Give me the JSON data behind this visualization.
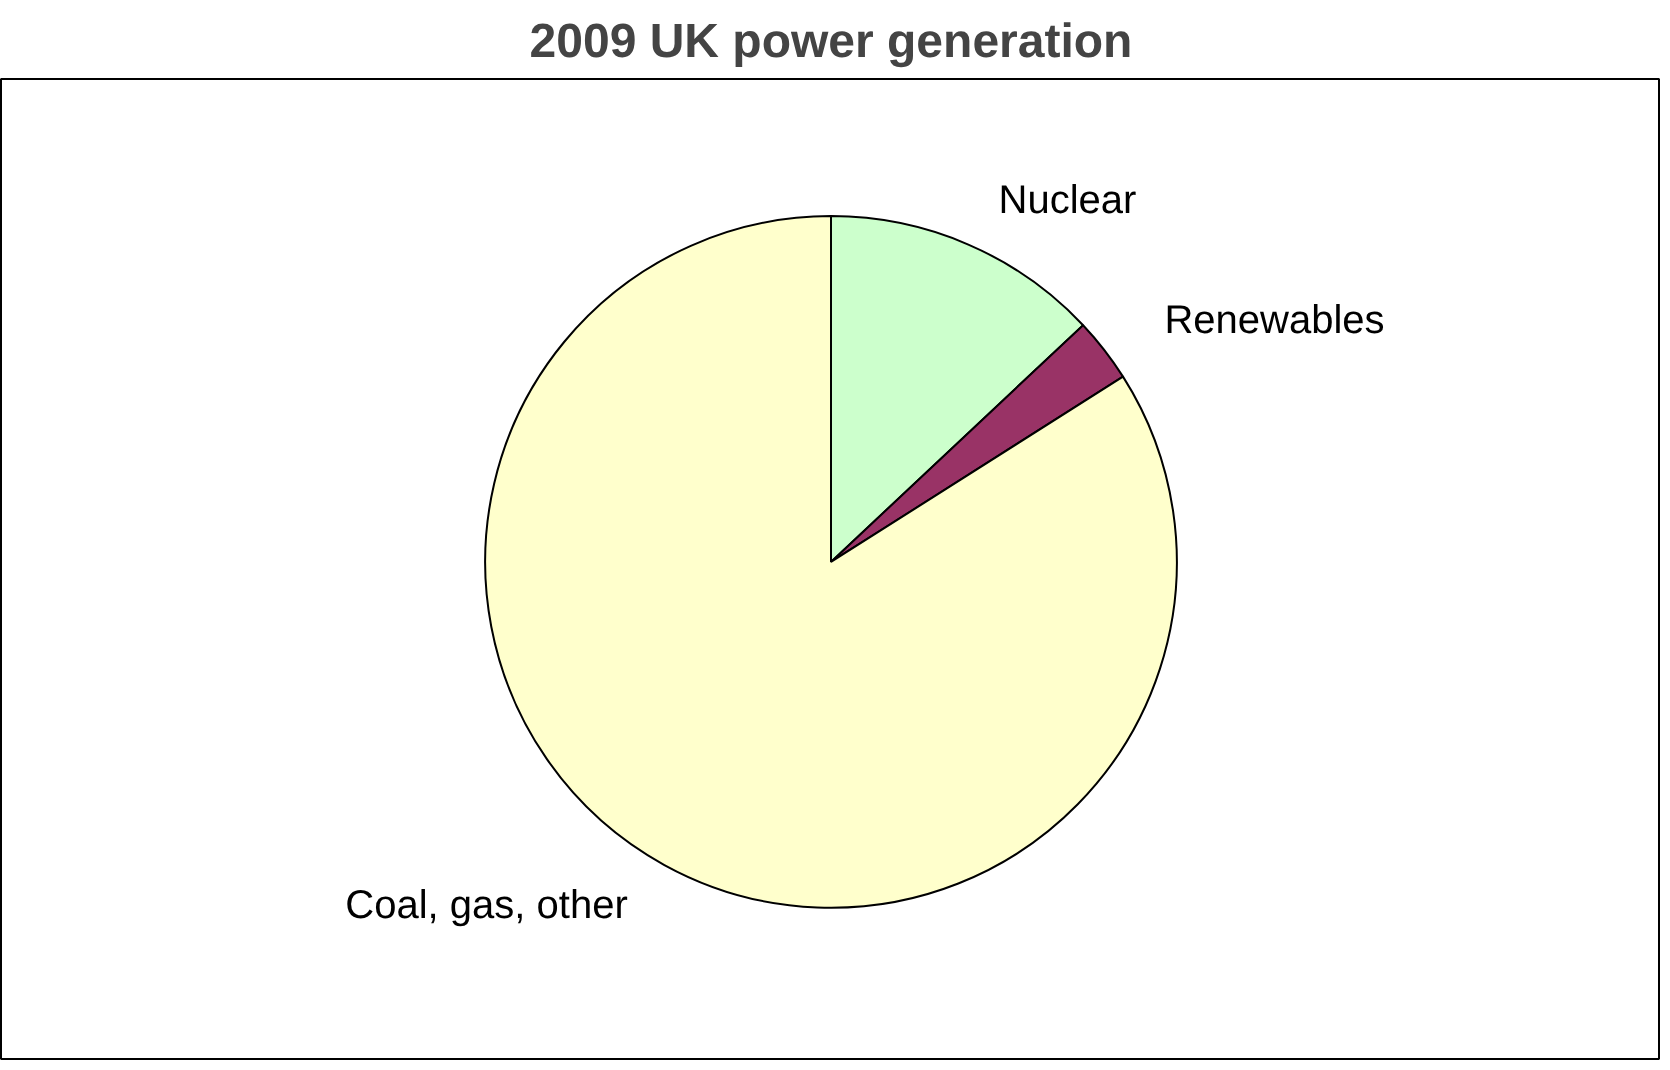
{
  "chart_data": {
    "type": "pie",
    "title": "2009 UK power generation",
    "categories": [
      "Nuclear",
      "Renewables",
      "Coal, gas, other"
    ],
    "values": [
      13,
      3,
      84
    ],
    "colors": [
      "#ccffcc",
      "#993366",
      "#ffffcc"
    ]
  }
}
